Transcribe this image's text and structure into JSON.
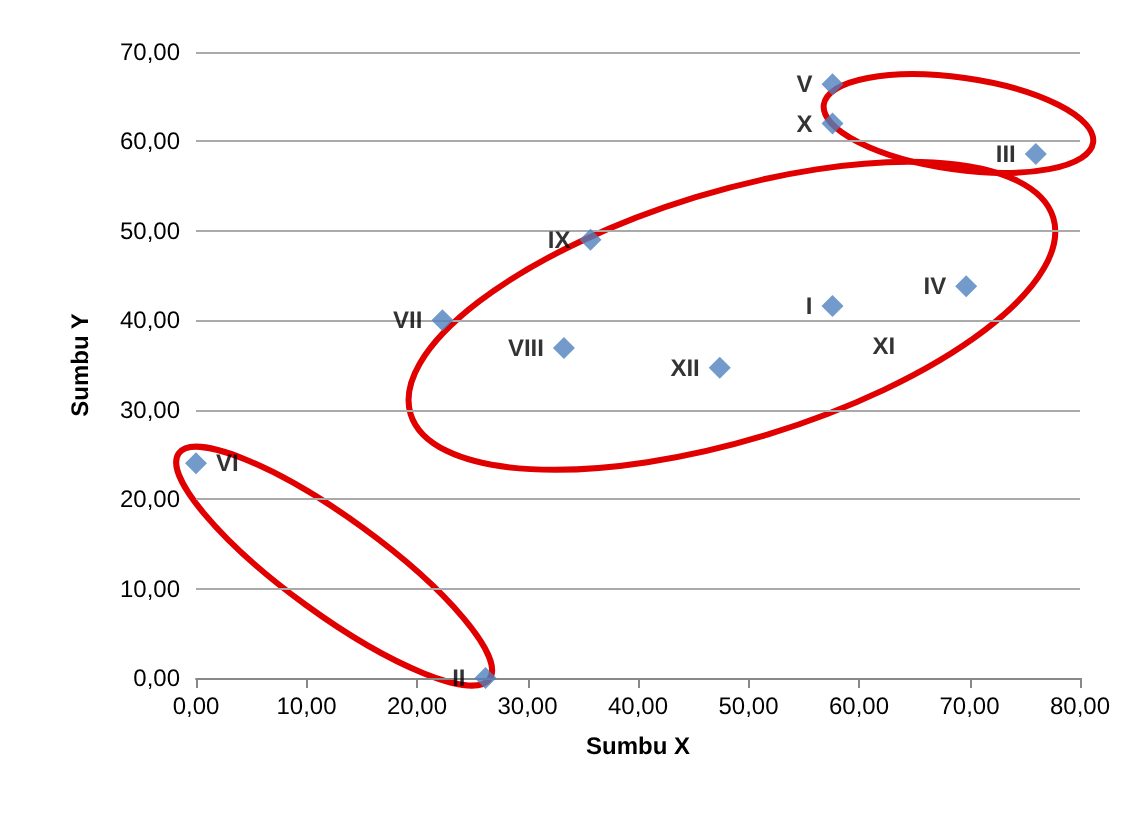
{
  "chart_data": {
    "type": "scatter",
    "xlabel": "Sumbu X",
    "ylabel": "Sumbu Y",
    "x": [
      0,
      26.2,
      22.3,
      33.3,
      35.7,
      47.4,
      57.6,
      69.7,
      57.6,
      57.6,
      76
    ],
    "values": [
      24,
      0,
      40,
      36.9,
      49,
      34.7,
      41.6,
      43.8,
      66.4,
      62,
      58.6
    ],
    "color": "#4f81bd",
    "marker": "diamond",
    "annotations": [
      {
        "text": "VI",
        "x": 0,
        "y": 24
      },
      {
        "text": "II",
        "x": 26.2,
        "y": 0
      },
      {
        "text": "VII",
        "x": 22.3,
        "y": 40
      },
      {
        "text": "VIII",
        "x": 33.3,
        "y": 36.9
      },
      {
        "text": "IX",
        "x": 35.7,
        "y": 49
      },
      {
        "text": "XII",
        "x": 47.4,
        "y": 34.7
      },
      {
        "text": "I",
        "x": 57.6,
        "y": 41.6
      },
      {
        "text": "XI",
        "x": 57.6,
        "y": 41.6
      },
      {
        "text": "IV",
        "x": 69.7,
        "y": 43.8
      },
      {
        "text": "V",
        "x": 57.6,
        "y": 66.4
      },
      {
        "text": "X",
        "x": 57.6,
        "y": 62
      },
      {
        "text": "III",
        "x": 76,
        "y": 58.6
      }
    ],
    "xlim": [
      0,
      80
    ],
    "xticks": [
      {
        "value": 0,
        "label": "0,00"
      },
      {
        "value": 10,
        "label": "10,00"
      },
      {
        "value": 20,
        "label": "20,00"
      },
      {
        "value": 30,
        "label": "30,00"
      },
      {
        "value": 40,
        "label": "40,00"
      },
      {
        "value": 50,
        "label": "50,00"
      },
      {
        "value": 60,
        "label": "60,00"
      },
      {
        "value": 70,
        "label": "70,00"
      },
      {
        "value": 80,
        "label": "80,00"
      }
    ],
    "ylim": [
      0,
      70
    ],
    "yticks": [
      {
        "value": 0,
        "label": "0,00"
      },
      {
        "value": 10,
        "label": "10,00"
      },
      {
        "value": 20,
        "label": "20,00"
      },
      {
        "value": 30,
        "label": "30,00"
      },
      {
        "value": 40,
        "label": "40,00"
      },
      {
        "value": 50,
        "label": "50,00"
      },
      {
        "value": 60,
        "label": "60,00"
      },
      {
        "value": 70,
        "label": "70,00"
      }
    ],
    "grid": "y"
  }
}
